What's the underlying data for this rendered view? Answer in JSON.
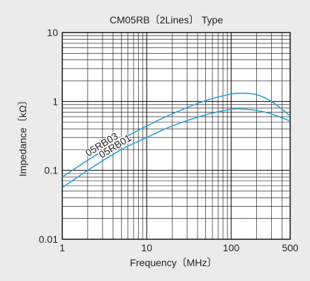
{
  "chart_data": {
    "type": "line",
    "title": "CM05RB〔2Lines〕 Type",
    "xlabel": "Frequency〔MHz〕",
    "ylabel": "Impedance〔kΩ〕",
    "x_scale": "log",
    "y_scale": "log",
    "xlim": [
      1,
      500
    ],
    "ylim": [
      0.01,
      10
    ],
    "x_ticks": [
      1,
      10,
      100,
      500
    ],
    "x_tick_labels": [
      "1",
      "10",
      "100",
      "500"
    ],
    "y_ticks": [
      0.01,
      0.1,
      1,
      10
    ],
    "y_tick_labels": [
      "0.01",
      "0.1",
      "1",
      "10"
    ],
    "grid": true,
    "line_color": "#29a3d6",
    "series": [
      {
        "name": "05RB03",
        "x": [
          1,
          2,
          5,
          10,
          20,
          50,
          100,
          130,
          200,
          300,
          500
        ],
        "y": [
          0.08,
          0.14,
          0.28,
          0.44,
          0.66,
          1.03,
          1.28,
          1.32,
          1.25,
          1.0,
          0.62
        ]
      },
      {
        "name": "05RB01",
        "x": [
          1,
          2,
          5,
          10,
          20,
          50,
          100,
          130,
          200,
          300,
          500
        ],
        "y": [
          0.056,
          0.1,
          0.2,
          0.3,
          0.44,
          0.64,
          0.77,
          0.78,
          0.74,
          0.66,
          0.52
        ]
      }
    ]
  }
}
